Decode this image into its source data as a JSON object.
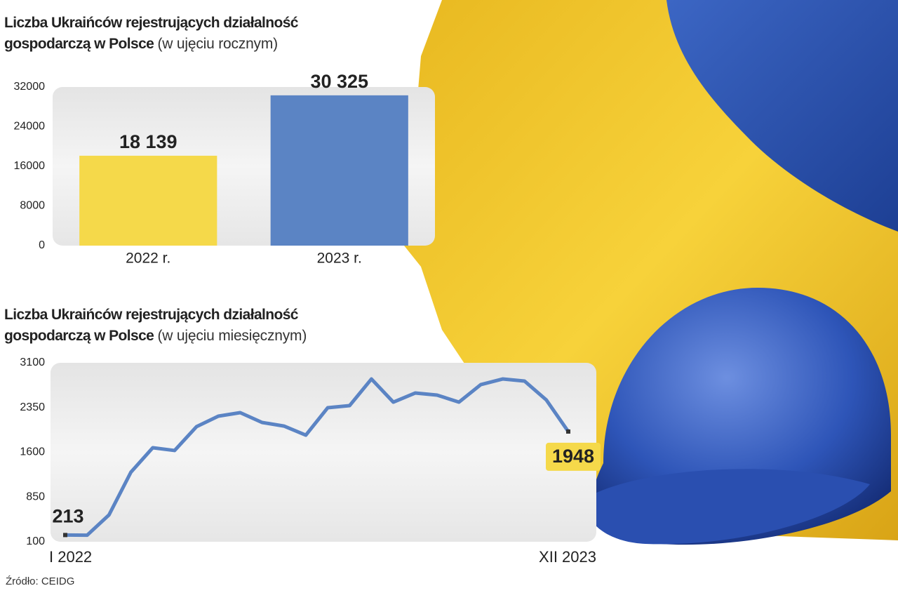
{
  "chart_data": [
    {
      "type": "bar",
      "title": "Liczba Ukraińców rejestrujących działalność gospodarczą w Polsce",
      "subtitle": "(w ujęciu rocznym)",
      "categories": [
        "2022 r.",
        "2023 r."
      ],
      "values": [
        18139,
        30325
      ],
      "value_labels": [
        "18 139",
        "30 325"
      ],
      "colors": [
        "#f5d94a",
        "#5b84c4"
      ],
      "ylim": [
        0,
        32000
      ],
      "yticks": [
        0,
        8000,
        16000,
        24000,
        32000
      ]
    },
    {
      "type": "line",
      "title": "Liczba Ukraińców rejestrujących działalność gospodarczą w Polsce",
      "subtitle": "(w ujęciu miesięcznym)",
      "categories": [
        "I 2022",
        null,
        null,
        null,
        null,
        null,
        null,
        null,
        null,
        null,
        null,
        null,
        null,
        null,
        null,
        null,
        null,
        null,
        null,
        null,
        null,
        null,
        null,
        "XII 2023"
      ],
      "values": [
        213,
        210,
        550,
        1265,
        1676,
        1630,
        2029,
        2206,
        2265,
        2100,
        2040,
        1888,
        2347,
        2382,
        2829,
        2441,
        2594,
        2559,
        2441,
        2735,
        2829,
        2794,
        2476,
        1948
      ],
      "color": "#5b84c4",
      "ylim": [
        100,
        3100
      ],
      "yticks": [
        100,
        850,
        1600,
        2350,
        3100
      ]
    }
  ],
  "source": "Źródło: CEIDG"
}
